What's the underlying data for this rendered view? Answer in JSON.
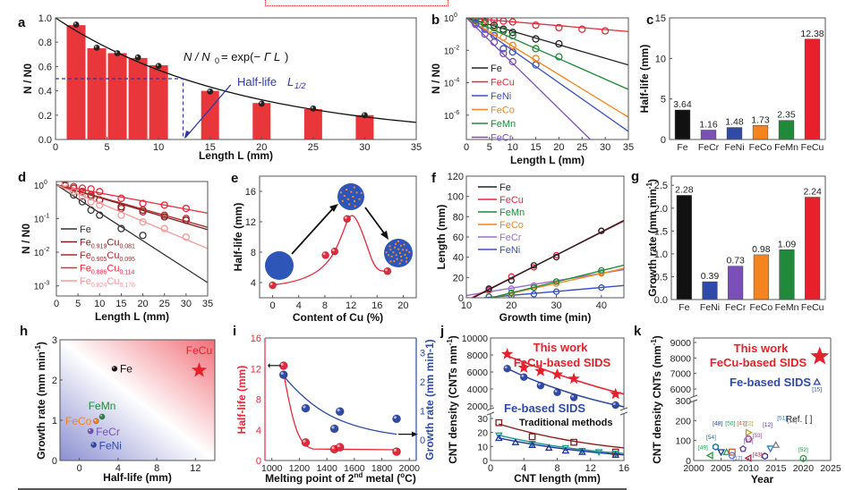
{
  "figure": {
    "panel_labels": [
      "a",
      "b",
      "c",
      "d",
      "e",
      "f",
      "g",
      "h",
      "i",
      "j",
      "k"
    ]
  },
  "chart_data": [
    {
      "panel": "a",
      "type": "bar",
      "title": "",
      "xlabel": "Length L (mm)",
      "ylabel": "N / N0",
      "xlim": [
        0,
        35
      ],
      "ylim": [
        0,
        1.0
      ],
      "xticks": [
        0,
        5,
        10,
        15,
        20,
        25,
        30,
        35
      ],
      "yticks": [
        0.0,
        0.2,
        0.4,
        0.6,
        0.8,
        1.0
      ],
      "x": [
        2,
        4,
        6,
        8,
        10,
        15,
        20,
        25,
        30
      ],
      "values": [
        0.94,
        0.75,
        0.71,
        0.67,
        0.61,
        0.4,
        0.3,
        0.25,
        0.2
      ],
      "points": [
        0.945,
        0.755,
        0.71,
        0.675,
        0.605,
        0.395,
        0.295,
        0.255,
        0.2
      ],
      "fit": {
        "label": "N / N0 = exp(−Γ L)",
        "gamma": 0.056
      },
      "half_life": {
        "label": "Half-life L1/2",
        "value": 12.38,
        "y": 0.5
      },
      "bar_color": "#e8363a"
    },
    {
      "panel": "b",
      "type": "line",
      "xlabel": "Length L (mm)",
      "ylabel": "N / N0",
      "yscale": "log",
      "xlim": [
        0,
        35
      ],
      "ylim_exp": [
        -7.5,
        0
      ],
      "xticks": [
        0,
        5,
        10,
        15,
        20,
        25,
        30,
        35
      ],
      "yticks_exp": [
        0,
        -2,
        -4,
        -6
      ],
      "legend": "bottom-left",
      "series": [
        {
          "name": "Fe",
          "color": "#222222",
          "log_slope": -0.083,
          "x": [
            2,
            4,
            6,
            8,
            10,
            15,
            20
          ],
          "y_exp": [
            -0.1,
            -0.25,
            -0.45,
            -0.7,
            -0.9,
            -1.3,
            -1.6
          ]
        },
        {
          "name": "FeCu",
          "color": "#e8283a",
          "log_slope": -0.024,
          "x": [
            2,
            4,
            6,
            8,
            10,
            15,
            20,
            25,
            30
          ],
          "y_exp": [
            -0.05,
            -0.1,
            -0.15,
            -0.2,
            -0.25,
            -0.45,
            -0.6,
            -0.7,
            -0.8
          ]
        },
        {
          "name": "FeNi",
          "color": "#3a50c0",
          "log_slope": -0.2,
          "x": [
            2,
            4,
            6,
            8,
            10,
            15
          ],
          "y_exp": [
            -0.3,
            -0.7,
            -1.1,
            -1.9,
            -2.1,
            -2.9
          ]
        },
        {
          "name": "FeCo",
          "color": "#f5841e",
          "log_slope": -0.175,
          "x": [
            2,
            4,
            6,
            8,
            10,
            15
          ],
          "y_exp": [
            -0.2,
            -0.5,
            -0.9,
            -1.2,
            -1.7,
            -2.5
          ]
        },
        {
          "name": "FeMn",
          "color": "#1f8a3a",
          "log_slope": -0.126,
          "x": [
            2,
            4,
            6,
            8,
            10,
            15,
            20
          ],
          "y_exp": [
            -0.15,
            -0.35,
            -0.6,
            -0.8,
            -1.1,
            -1.9,
            -2.4
          ]
        },
        {
          "name": "FeCr",
          "color": "#7b4fb8",
          "log_slope": -0.28,
          "x": [
            2,
            4,
            6,
            8,
            10
          ],
          "y_exp": [
            -0.4,
            -1.0,
            -1.5,
            -2.2,
            -2.7
          ]
        }
      ]
    },
    {
      "panel": "c",
      "type": "bar",
      "ylabel": "Half-life (mm)",
      "ylim": [
        0,
        15
      ],
      "yticks": [
        0,
        5,
        10,
        15
      ],
      "categories": [
        "Fe",
        "FeCr",
        "FeNi",
        "FeCo",
        "FeMn",
        "FeCu"
      ],
      "values": [
        3.64,
        1.16,
        1.48,
        1.73,
        2.35,
        12.38
      ],
      "value_labels": [
        "3.64",
        "1.16",
        "1.48",
        "1.73",
        "2.35",
        "12.38"
      ],
      "colors": [
        "#111111",
        "#7b4fb8",
        "#2f4aa8",
        "#f5841e",
        "#1f8a3a",
        "#e8202c"
      ]
    },
    {
      "panel": "d",
      "type": "line",
      "xlabel": "Length L (mm)",
      "ylabel": "N / N0",
      "yscale": "log",
      "xlim": [
        0,
        35
      ],
      "ylim_exp": [
        -3.3,
        0.1
      ],
      "xticks": [
        0,
        5,
        10,
        15,
        20,
        25,
        30,
        35
      ],
      "yticks_exp": [
        0,
        -1,
        -2,
        -3
      ],
      "legend": "bottom-left",
      "series": [
        {
          "name": "Fe",
          "sub": [
            "",
            ""
          ],
          "color": "#333333",
          "log_slope": -0.083,
          "x": [
            2,
            4,
            6,
            8,
            10,
            15,
            20
          ],
          "y_exp": [
            0,
            -0.3,
            -0.5,
            -0.75,
            -0.9,
            -1.3,
            -1.5
          ]
        },
        {
          "name": "Fe0.919Cu0.081",
          "sub": [
            "0.919",
            "0.081"
          ],
          "color": "#7a1f1f",
          "log_slope": -0.038,
          "x": [
            2,
            4,
            6,
            8,
            10,
            15,
            20,
            25,
            30
          ],
          "y_exp": [
            -0.02,
            -0.1,
            -0.2,
            -0.3,
            -0.45,
            -0.65,
            -0.75,
            -0.95,
            -1.05
          ]
        },
        {
          "name": "Fe0.905Cu0.095",
          "sub": [
            "0.905",
            "0.095"
          ],
          "color": "#b02a2a",
          "log_slope": -0.036,
          "x": [
            2,
            4,
            6,
            8,
            10,
            15,
            20,
            25,
            30
          ],
          "y_exp": [
            0,
            -0.1,
            -0.2,
            -0.35,
            -0.45,
            -0.7,
            -0.8,
            -0.9,
            -1.0
          ]
        },
        {
          "name": "Fe0.886Cu0.114",
          "sub": [
            "0.886",
            "0.114"
          ],
          "color": "#e8283a",
          "log_slope": -0.024,
          "x": [
            2,
            4,
            6,
            8,
            10,
            15,
            20,
            25,
            30
          ],
          "y_exp": [
            0.05,
            -0.05,
            -0.1,
            -0.12,
            -0.2,
            -0.4,
            -0.55,
            -0.6,
            -0.7
          ]
        },
        {
          "name": "Fe0.824Cu0.176",
          "sub": [
            "0.824",
            "0.176"
          ],
          "color": "#f59a9a",
          "log_slope": -0.054,
          "x": [
            2,
            4,
            6,
            8,
            10,
            15,
            20,
            25,
            30
          ],
          "y_exp": [
            0.05,
            -0.2,
            -0.35,
            -0.5,
            -0.6,
            -0.9,
            -1.1,
            -1.3,
            -1.55
          ]
        }
      ]
    },
    {
      "panel": "e",
      "type": "scatter",
      "xlabel": "Content of Cu (%)",
      "ylabel": "Half-life (mm)",
      "xlim": [
        -2,
        22
      ],
      "ylim": [
        2,
        18
      ],
      "xticks": [
        0,
        4,
        8,
        12,
        16,
        20
      ],
      "yticks": [
        4,
        8,
        12,
        16
      ],
      "x": [
        0,
        8.1,
        9.5,
        11.4,
        17.6
      ],
      "values": [
        3.64,
        7.6,
        8.1,
        12.38,
        5.5
      ],
      "color": "#e8283a"
    },
    {
      "panel": "f",
      "type": "line",
      "xlabel": "Growth time (min)",
      "ylabel": "Length (mm)",
      "xlim": [
        10,
        45
      ],
      "ylim": [
        0,
        120
      ],
      "xticks": [
        10,
        20,
        30,
        40
      ],
      "yticks": [
        0,
        20,
        40,
        60,
        80,
        100,
        120
      ],
      "legend": "top-left",
      "series": [
        {
          "name": "Fe",
          "color": "#222222",
          "slope": 2.28,
          "x0": 11.5,
          "x": [
            15,
            20,
            25,
            30,
            40
          ],
          "y": [
            9,
            17,
            32,
            40,
            66
          ]
        },
        {
          "name": "FeCu",
          "color": "#e8283a",
          "slope": 2.24,
          "x0": 11.2,
          "x": [
            15,
            20,
            25,
            30,
            40
          ],
          "y": [
            8,
            21,
            30,
            42,
            66
          ]
        },
        {
          "name": "FeMn",
          "color": "#1f8a3a",
          "slope": 1.09,
          "x0": 15.5,
          "x": [
            15,
            20,
            25,
            30,
            40
          ],
          "y": [
            1,
            5,
            10,
            16,
            27
          ]
        },
        {
          "name": "FeCo",
          "color": "#f5841e",
          "slope": 0.98,
          "x0": 15.5,
          "x": [
            20,
            25,
            30,
            40
          ],
          "y": [
            4,
            10,
            14,
            24
          ]
        },
        {
          "name": "FeCr",
          "color": "#9b6fd0",
          "slope": 0.73,
          "x0": 7,
          "x": [
            15,
            20,
            25,
            30,
            40
          ],
          "y": [
            7,
            9,
            12,
            16,
            25
          ]
        },
        {
          "name": "FeNi",
          "color": "#3a50c0",
          "slope": 0.39,
          "x0": 14,
          "x": [
            15,
            20,
            25,
            30,
            40
          ],
          "y": [
            1,
            2,
            3.5,
            6,
            10
          ]
        }
      ]
    },
    {
      "panel": "g",
      "type": "bar",
      "ylabel": "Growth rate (mm min-1)",
      "ylim": [
        0,
        2.7
      ],
      "yticks": [
        0.0,
        0.5,
        1.0,
        1.5,
        2.0,
        2.5
      ],
      "categories": [
        "Fe",
        "FeNi",
        "FeCr",
        "FeCo",
        "FeMn",
        "FeCu"
      ],
      "values": [
        2.28,
        0.39,
        0.73,
        0.98,
        1.09,
        2.24
      ],
      "value_labels": [
        "2.28",
        "0.39",
        "0.73",
        "0.98",
        "1.09",
        "2.24"
      ],
      "colors": [
        "#111111",
        "#2f4aa8",
        "#7b4fb8",
        "#f5841e",
        "#1f8a3a",
        "#e8202c"
      ]
    },
    {
      "panel": "h",
      "type": "scatter",
      "xlabel": "Half-life (mm)",
      "ylabel": "Growth rate (mm min-1)",
      "xlim": [
        -2,
        14
      ],
      "ylim": [
        0,
        3
      ],
      "xticks": [
        0,
        4,
        8,
        12
      ],
      "yticks": [
        0,
        1,
        2,
        3
      ],
      "points": [
        {
          "name": "Fe",
          "x": 3.64,
          "y": 2.28,
          "color": "#111111",
          "marker": "circle"
        },
        {
          "name": "FeMn",
          "x": 2.35,
          "y": 1.09,
          "color": "#1f8a3a",
          "marker": "circle"
        },
        {
          "name": "FeCo",
          "x": 1.73,
          "y": 0.98,
          "color": "#f5841e",
          "marker": "circle"
        },
        {
          "name": "FeCr",
          "x": 1.16,
          "y": 0.73,
          "color": "#7b4fb8",
          "marker": "circle"
        },
        {
          "name": "FeNi",
          "x": 1.48,
          "y": 0.39,
          "color": "#2f4aa8",
          "marker": "circle"
        },
        {
          "name": "FeCu",
          "x": 12.38,
          "y": 2.24,
          "color": "#e8202c",
          "marker": "star"
        }
      ]
    },
    {
      "panel": "i",
      "type": "scatter",
      "xlabel": "Melting point of 2nd metal (oC)",
      "ylabel": "Half-life (mm)",
      "ylabel_right": "Growth rate (mm min-1)",
      "xlim": [
        950,
        2050
      ],
      "ylim": [
        0,
        16
      ],
      "ylim_right": [
        -0.7,
        3.5
      ],
      "xticks": [
        1000,
        1200,
        1400,
        1600,
        1800,
        2000
      ],
      "yticks": [
        0,
        4,
        8,
        12,
        16
      ],
      "yticks_right": [
        0,
        1,
        2,
        3
      ],
      "series": [
        {
          "name": "Half-life",
          "axis": "left",
          "color": "#e8283a",
          "x": [
            1085,
            1246,
            1455,
            1495,
            1907
          ],
          "y": [
            12.38,
            2.35,
            1.48,
            1.73,
            1.16
          ]
        },
        {
          "name": "Growth rate",
          "axis": "right",
          "color": "#2f4aa8",
          "x": [
            1085,
            1246,
            1455,
            1495,
            1907
          ],
          "y": [
            2.24,
            1.09,
            0.39,
            0.98,
            0.73
          ]
        }
      ]
    },
    {
      "panel": "j",
      "type": "scatter",
      "xlabel": "CNT length (mm)",
      "ylabel": "CNT density (CNTs mm-1)",
      "xlim": [
        0,
        16
      ],
      "xticks": [
        0,
        4,
        8,
        12,
        16
      ],
      "yticks_upper": [
        2000,
        4000,
        6000,
        8000,
        10000
      ],
      "yticks_lower": [
        0,
        10,
        20,
        30
      ],
      "annotations": [
        "This work",
        "FeCu-based SIDS",
        "Fe-based SIDS",
        "Traditional methods"
      ],
      "series": [
        {
          "name": "This work FeCu-based SIDS",
          "color": "#e8202c",
          "marker": "star",
          "x": [
            2,
            4,
            6,
            8,
            10,
            15
          ],
          "y": [
            8100,
            6500,
            6100,
            5700,
            5200,
            3400
          ]
        },
        {
          "name": "Fe-based SIDS",
          "color": "#2f4aa8",
          "marker": "circle",
          "x": [
            2,
            4,
            6,
            8,
            10,
            15
          ],
          "y": [
            6400,
            5400,
            4400,
            3600,
            3000,
            2100
          ]
        },
        {
          "name": "Traditional (square)",
          "color": "#8b1a1a",
          "marker": "square",
          "x": [
            1,
            5,
            10,
            15
          ],
          "y": [
            27,
            17,
            13,
            6
          ]
        },
        {
          "name": "Traditional (inv-triangle)",
          "color": "#1a9a8a",
          "marker": "triangle-down",
          "x": [
            1,
            5,
            9,
            11,
            13,
            15
          ],
          "y": [
            18,
            12,
            9,
            7,
            6,
            5
          ]
        },
        {
          "name": "Traditional (triangle)",
          "color": "#2030a0",
          "marker": "triangle",
          "x": [
            1,
            3,
            5,
            7,
            9,
            11,
            15
          ],
          "y": [
            16,
            13,
            11,
            9,
            7,
            6,
            4
          ]
        }
      ]
    },
    {
      "panel": "k",
      "type": "scatter",
      "xlabel": "Year",
      "ylabel": "CNT density CNTs (mm-1)",
      "xlim": [
        2000,
        2025
      ],
      "xticks": [
        2000,
        2005,
        2010,
        2015,
        2020,
        2025
      ],
      "yticks_upper": [
        6000,
        7000,
        8000,
        9000
      ],
      "yticks_lower": [
        0,
        100,
        200,
        300
      ],
      "annotations": [
        "This work",
        "FeCu-based SIDS",
        "Fe-based SIDS",
        "Ref. [ ]"
      ],
      "points": [
        {
          "ref": "This work",
          "x": 2023,
          "y": 8100,
          "color": "#e8202c",
          "marker": "star"
        },
        {
          "ref": "[15]",
          "x": 2022.5,
          "y": 6450,
          "color": "#2f4aa8",
          "marker": "triangle"
        },
        {
          "ref": "[49]",
          "x": 2003,
          "y": 25,
          "color": "#1f9a3a",
          "marker": "triangle-left"
        },
        {
          "ref": "[54]",
          "x": 2004,
          "y": 68,
          "color": "#1a6ab0",
          "marker": "hexagon"
        },
        {
          "ref": "[48]",
          "x": 2005,
          "y": 42,
          "color": "#1a3a80",
          "marker": "triangle-down"
        },
        {
          "ref": "[50]",
          "x": 2006,
          "y": 42,
          "color": "#1f9a5a",
          "marker": "triangle"
        },
        {
          "ref": "[47]",
          "x": 2007,
          "y": 42,
          "color": "#d05a2a",
          "marker": "square"
        },
        {
          "ref": "[17]",
          "x": 2007,
          "y": 25,
          "color": "#5a7ad0",
          "marker": "circle"
        },
        {
          "ref": "[13]",
          "x": 2009,
          "y": 58,
          "color": "#5a3aa0",
          "marker": "pentagon"
        },
        {
          "ref": "[22]",
          "x": 2010,
          "y": 140,
          "color": "#b0a020",
          "marker": "triangle-right"
        },
        {
          "ref": "[53]",
          "x": 2010,
          "y": 108,
          "color": "#a040a0",
          "marker": "circle"
        },
        {
          "ref": "[43]",
          "x": 2010,
          "y": 12,
          "color": "#b02050",
          "marker": "triangle-left"
        },
        {
          "ref": "[12]",
          "x": 2013,
          "y": 22,
          "color": "#4a30a0",
          "marker": "hexagon"
        },
        {
          "ref": "[51]",
          "x": 2014,
          "y": 60,
          "color": "#2a7ac0",
          "marker": "triangle-down"
        },
        {
          "ref": "[18]",
          "x": 2015,
          "y": 78,
          "color": "#808080",
          "marker": "triangle"
        },
        {
          "ref": "[52]",
          "x": 2020,
          "y": 10,
          "color": "#2a9a3a",
          "marker": "circle"
        }
      ]
    }
  ]
}
